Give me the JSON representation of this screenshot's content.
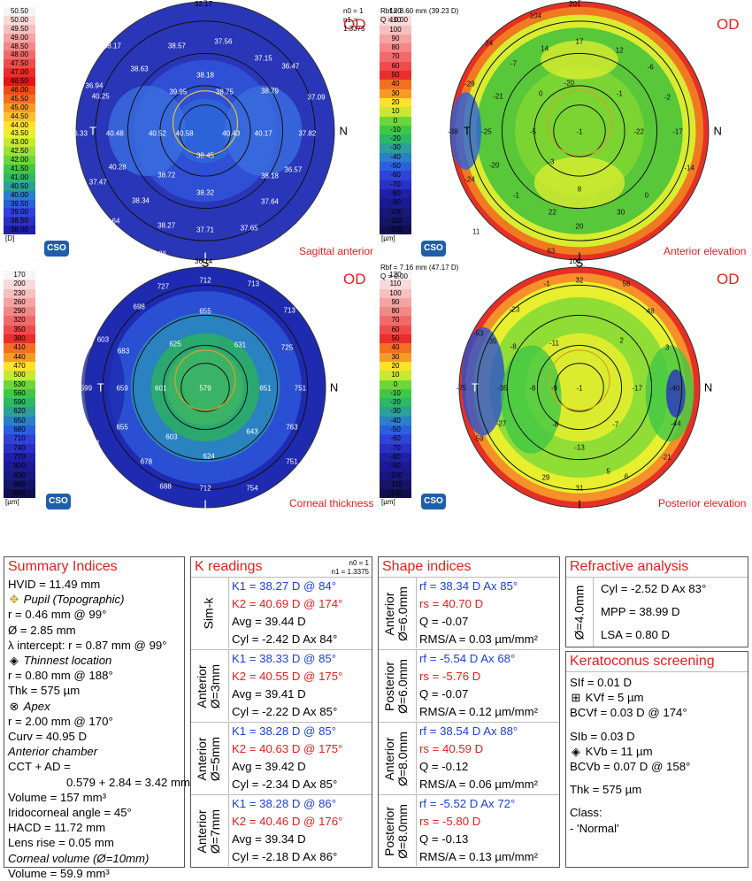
{
  "maps": [
    {
      "id": "sagittal",
      "od": "OD",
      "title": "Sagittal anterior",
      "logo": "CSO",
      "meta": [
        "n0 = 1",
        "n1 = 1.3375"
      ],
      "top_value": "32.17",
      "bottom_value": "36.14",
      "colorbar": [
        "50.50",
        "50.00",
        "49.50",
        "49.00",
        "48.50",
        "48.00",
        "47.50",
        "47.00",
        "46.50",
        "46.00",
        "45.50",
        "45.00",
        "44.50",
        "44.00",
        "43.50",
        "43.00",
        "42.50",
        "42.00",
        "41.50",
        "41.00",
        "40.50",
        "40.00",
        "39.50",
        "39.00",
        "38.50",
        "38.00"
      ],
      "colorbar_colors": [
        "#f6f6f6",
        "#f9dada",
        "#f7c0c0",
        "#f5a3a3",
        "#f38888",
        "#f16a6a",
        "#ee4c4c",
        "#ea2d2d",
        "#e61414",
        "#ef4b1b",
        "#f37022",
        "#f79a26",
        "#fbc02b",
        "#fde22e",
        "#e9f02e",
        "#c6ea30",
        "#9be234",
        "#6cd63a",
        "#3fc845",
        "#2cb866",
        "#2b9f98",
        "#2a7fc8",
        "#2b60dd",
        "#2f43d6",
        "#2a30c2",
        "#1e20a8"
      ],
      "unit": "[D]",
      "labels": [
        "S",
        "T",
        "N",
        "I"
      ],
      "values": [
        {
          "t": "34.36"
        },
        {
          "t": "38.17"
        },
        {
          "t": "38.57"
        },
        {
          "t": "37.56"
        },
        {
          "t": "37.15"
        },
        {
          "t": "36.47"
        },
        {
          "t": "36.94"
        },
        {
          "t": "38.63"
        },
        {
          "t": "38.18"
        },
        {
          "t": "40.25"
        },
        {
          "t": "39.95"
        },
        {
          "t": "38.75"
        },
        {
          "t": "38.79"
        },
        {
          "t": "37.09"
        },
        {
          "t": "36.33"
        },
        {
          "t": "40.48"
        },
        {
          "t": "40.52"
        },
        {
          "t": "40.58"
        },
        {
          "t": "40.43"
        },
        {
          "t": "40.17"
        },
        {
          "t": "37.82"
        },
        {
          "t": "38.45"
        },
        {
          "t": "40.28"
        },
        {
          "t": "38.72"
        },
        {
          "t": "38.18"
        },
        {
          "t": "36.57"
        },
        {
          "t": "37.47"
        },
        {
          "t": "38.32"
        },
        {
          "t": "38.34"
        },
        {
          "t": "37.64"
        },
        {
          "t": "38.27"
        },
        {
          "t": "37.65"
        },
        {
          "t": "36.64"
        },
        {
          "t": "37.71"
        },
        {
          "t": "36.26"
        }
      ]
    },
    {
      "id": "anterior-elevation",
      "od": "OD",
      "title": "Anterior elevation",
      "logo": "CSO",
      "meta": [
        "Rbf = 8.60 mm (39.23 D)",
        "Q = 0.00"
      ],
      "top_value": "201",
      "bottom_value": "103",
      "colorbar": [
        "120",
        "110",
        "100",
        "90",
        "80",
        "70",
        "60",
        "50",
        "40",
        "30",
        "20",
        "10",
        "0",
        "-10",
        "-20",
        "-30",
        "-40",
        "-50",
        "-60",
        "-70",
        "-80",
        "-90",
        "-100",
        "-110",
        "-120"
      ],
      "colorbar_colors": [
        "#f6f6f6",
        "#f9dada",
        "#f7c0c0",
        "#f5a3a3",
        "#f38888",
        "#f16a6a",
        "#ee4c4c",
        "#ea2d2d",
        "#f37022",
        "#f79a26",
        "#fde22e",
        "#c6ea30",
        "#6cd63a",
        "#3fc845",
        "#2cb866",
        "#2b9f98",
        "#2a7fc8",
        "#2b60dd",
        "#2f43d6",
        "#2a30c2",
        "#1e20a8",
        "#1a1b90",
        "#18187c",
        "#151568",
        "#101050"
      ],
      "unit": "[µm]",
      "labels": [
        "S",
        "T",
        "N",
        "I"
      ],
      "values": [
        {
          "t": "104"
        },
        {
          "t": "24"
        },
        {
          "t": "14"
        },
        {
          "t": "17"
        },
        {
          "t": "12"
        },
        {
          "t": "-7"
        },
        {
          "t": "-6"
        },
        {
          "t": "-29"
        },
        {
          "t": "-21"
        },
        {
          "t": "0"
        },
        {
          "t": "-1"
        },
        {
          "t": "-2"
        },
        {
          "t": "-20"
        },
        {
          "t": "-38"
        },
        {
          "t": "-25"
        },
        {
          "t": "-5"
        },
        {
          "t": "-1"
        },
        {
          "t": "-22"
        },
        {
          "t": "-17"
        },
        {
          "t": "-20"
        },
        {
          "t": "-3"
        },
        {
          "t": "-14"
        },
        {
          "t": "-24"
        },
        {
          "t": "-1"
        },
        {
          "t": "8"
        },
        {
          "t": "0"
        },
        {
          "t": "11"
        },
        {
          "t": "22"
        },
        {
          "t": "30"
        },
        {
          "t": "20"
        },
        {
          "t": "63"
        }
      ]
    },
    {
      "id": "corneal-thickness",
      "od": "OD",
      "title": "Corneal thickness",
      "logo": "CSO",
      "meta": [],
      "top_value": "",
      "bottom_value": "",
      "colorbar": [
        "170",
        "200",
        "230",
        "260",
        "290",
        "320",
        "350",
        "380",
        "410",
        "440",
        "470",
        "500",
        "530",
        "560",
        "590",
        "620",
        "650",
        "680",
        "710",
        "740",
        "770",
        "800",
        "830",
        "860",
        "890"
      ],
      "colorbar_colors": [
        "#f6f6f6",
        "#f9dada",
        "#f7c0c0",
        "#f5a3a3",
        "#f38888",
        "#f16a6a",
        "#ee4c4c",
        "#ea2d2d",
        "#f37022",
        "#f79a26",
        "#fde22e",
        "#c6ea30",
        "#6cd63a",
        "#3fc845",
        "#2cb866",
        "#2b9f98",
        "#2a7fc8",
        "#2b60dd",
        "#2f43d6",
        "#2a30c2",
        "#1e20a8",
        "#1a1b90",
        "#18187c",
        "#151568",
        "#101050"
      ],
      "unit": "[µm]",
      "labels": [
        "S",
        "T",
        "N",
        "I"
      ],
      "values": [
        {
          "t": "712"
        },
        {
          "t": "727"
        },
        {
          "t": "713"
        },
        {
          "t": "713"
        },
        {
          "t": "698"
        },
        {
          "t": "655"
        },
        {
          "t": "603"
        },
        {
          "t": "683"
        },
        {
          "t": "625"
        },
        {
          "t": "631"
        },
        {
          "t": "725"
        },
        {
          "t": "599"
        },
        {
          "t": "659"
        },
        {
          "t": "601"
        },
        {
          "t": "579"
        },
        {
          "t": "651"
        },
        {
          "t": "751"
        },
        {
          "t": "655"
        },
        {
          "t": "603"
        },
        {
          "t": "643"
        },
        {
          "t": "763"
        },
        {
          "t": "811"
        },
        {
          "t": "624"
        },
        {
          "t": "678"
        },
        {
          "t": "751"
        },
        {
          "t": "688"
        },
        {
          "t": "712"
        },
        {
          "t": "754"
        }
      ]
    },
    {
      "id": "posterior-elevation",
      "od": "OD",
      "title": "Posterior elevation",
      "logo": "CSO",
      "meta": [
        "Rbf = 7.16 mm (47.17 D)",
        "Q = 0.00"
      ],
      "top_value": "",
      "bottom_value": "",
      "colorbar": [
        "120",
        "110",
        "100",
        "90",
        "80",
        "70",
        "60",
        "50",
        "40",
        "30",
        "20",
        "10",
        "0",
        "-10",
        "-20",
        "-30",
        "-40",
        "-50",
        "-60",
        "-70",
        "-80",
        "-90",
        "-100",
        "-110",
        "-120"
      ],
      "colorbar_colors": [
        "#f6f6f6",
        "#f9dada",
        "#f7c0c0",
        "#f5a3a3",
        "#f38888",
        "#f16a6a",
        "#ee4c4c",
        "#ea2d2d",
        "#f37022",
        "#f79a26",
        "#fde22e",
        "#c6ea30",
        "#6cd63a",
        "#3fc845",
        "#2cb866",
        "#2b9f98",
        "#2a7fc8",
        "#2b60dd",
        "#2f43d6",
        "#2a30c2",
        "#1e20a8",
        "#1a1b90",
        "#18187c",
        "#151568",
        "#101050"
      ],
      "unit": "[µm]",
      "labels": [
        "S",
        "T",
        "N",
        "I"
      ],
      "values": [
        {
          "t": "32"
        },
        {
          "t": "56"
        },
        {
          "t": "-1"
        },
        {
          "t": "-23"
        },
        {
          "t": "48"
        },
        {
          "t": "-35"
        },
        {
          "t": "-8"
        },
        {
          "t": "-11"
        },
        {
          "t": "2"
        },
        {
          "t": "3"
        },
        {
          "t": "-53"
        },
        {
          "t": "-35"
        },
        {
          "t": "-8"
        },
        {
          "t": "-9"
        },
        {
          "t": "-1"
        },
        {
          "t": "-17"
        },
        {
          "t": "-40"
        },
        {
          "t": "-75"
        },
        {
          "t": "-27"
        },
        {
          "t": "-8"
        },
        {
          "t": "-7"
        },
        {
          "t": "-44"
        },
        {
          "t": "-59"
        },
        {
          "t": "-13"
        },
        {
          "t": "-21"
        },
        {
          "t": "29"
        },
        {
          "t": "6"
        },
        {
          "t": "31"
        },
        {
          "t": "5"
        }
      ]
    }
  ],
  "summary": {
    "title": "Summary Indices",
    "lines": [
      {
        "k": "hvid",
        "t": "HVID = 11.49 mm"
      },
      {
        "k": "pupil",
        "t": "Pupil (Topographic)",
        "sym": "✥",
        "italic": true
      },
      {
        "k": "pupil_r",
        "t": "r = 0.46 mm @ 99°"
      },
      {
        "k": "pupil_d",
        "t": "Ø = 2.85 mm"
      },
      {
        "k": "lambda",
        "t": "λ intercept: r = 0.87 mm @ 99°"
      },
      {
        "k": "thin",
        "t": "Thinnest location",
        "sym": "◈",
        "italic": true
      },
      {
        "k": "thin_r",
        "t": "r = 0.80 mm @ 188°"
      },
      {
        "k": "thk",
        "t": "Thk = 575 µm"
      },
      {
        "k": "apex",
        "t": "Apex",
        "sym": "⊗",
        "italic": true
      },
      {
        "k": "apex_r",
        "t": "r = 2.00 mm @ 170°"
      },
      {
        "k": "curv",
        "t": "Curv = 40.95 D"
      },
      {
        "k": "ac",
        "t": "Anterior chamber",
        "italic": true
      },
      {
        "k": "cct",
        "t": "CCT + AD ="
      },
      {
        "k": "cct_v",
        "t": "0.579 + 2.84 = 3.42 mm",
        "indent": true
      },
      {
        "k": "vol",
        "t": "Volume = 157 mm³"
      },
      {
        "k": "irido",
        "t": "Iridocorneal angle = 45°"
      },
      {
        "k": "hacd",
        "t": "HACD = 11.72 mm"
      },
      {
        "k": "lens",
        "t": "Lens rise = 0.05 mm"
      },
      {
        "k": "cvol",
        "t": "Corneal volume (Ø=10mm)",
        "italic": true
      },
      {
        "k": "cvol_v",
        "t": "Volume = 59.9 mm³"
      }
    ]
  },
  "kreadings": {
    "title": "K readings",
    "meta": [
      "n0 = 1",
      "n1 = 1.3375"
    ],
    "sections": [
      {
        "label": "Sim-k",
        "k1": "K1 = 38.27 D  @ 84°",
        "k2": "K2 = 40.69 D  @ 174°",
        "avg": "Avg = 39.44 D",
        "cyl": "Cyl = -2.42 D Ax 84°"
      },
      {
        "label": "Anterior\nØ=3mm",
        "k1": "K1 = 38.33 D  @ 85°",
        "k2": "K2 = 40.55 D  @ 175°",
        "avg": "Avg = 39.41 D",
        "cyl": "Cyl = -2.22 D Ax 85°"
      },
      {
        "label": "Anterior\nØ=5mm",
        "k1": "K1 = 38.28 D  @ 85°",
        "k2": "K2 = 40.63 D  @ 175°",
        "avg": "Avg = 39.42 D",
        "cyl": "Cyl = -2.34 D Ax 85°"
      },
      {
        "label": "Anterior\nØ=7mm",
        "k1": "K1 = 38.28 D  @ 86°",
        "k2": "K2 = 40.46 D  @ 176°",
        "avg": "Avg = 39.34 D",
        "cyl": "Cyl = -2.18 D Ax 86°"
      }
    ]
  },
  "shape": {
    "title": "Shape indices",
    "sections": [
      {
        "label": "Anterior\nØ=6.0mm",
        "rf": "rf = 38.34 D Ax 85°",
        "rs": "rs = 40.70 D",
        "q": "Q = -0.07",
        "rms": "RMS/A = 0.03 µm/mm²"
      },
      {
        "label": "Posterior\nØ=6.0mm",
        "rf": "rf = -5.54 D Ax 68°",
        "rs": "rs = -5.76 D",
        "q": "Q = -0.07",
        "rms": "RMS/A = 0.12 µm/mm²"
      },
      {
        "label": "Anterior\nØ=8.0mm",
        "rf": "rf = 38.54 D Ax 88°",
        "rs": "rs = 40.59 D",
        "q": "Q = -0.12",
        "rms": "RMS/A = 0.06 µm/mm²"
      },
      {
        "label": "Posterior\nØ=8.0mm",
        "rf": "rf = -5.52 D Ax 72°",
        "rs": "rs = -5.80 D",
        "q": "Q = -0.13",
        "rms": "RMS/A = 0.13 µm/mm²"
      }
    ]
  },
  "refractive": {
    "title": "Refractive analysis",
    "label": "Ø=4.0mm",
    "cyl": "Cyl = -2.52 D Ax 83°",
    "mpp": "MPP = 38.99 D",
    "lsa": "LSA = 0.80 D"
  },
  "keratoconus": {
    "title": "Keratoconus screening",
    "slf": "SIf = 0.01 D",
    "kvf": "KVf = 5 µm",
    "kvf_sym": "⊞",
    "bcvf": "BCVf = 0.03 D @ 174°",
    "slb": "SIb = 0.03 D",
    "kvb": "KVb = 11 µm",
    "kvb_sym": "◈",
    "bcvb": "BCVb = 0.07 D @ 158°",
    "thk": "Thk = 575 µm",
    "class_label": "Class:",
    "class_value": "- 'Normal'"
  },
  "colors": {
    "accent_red": "#e41e1e",
    "k1_blue": "#1c3fd6",
    "logo_blue": "#1f5faa"
  }
}
